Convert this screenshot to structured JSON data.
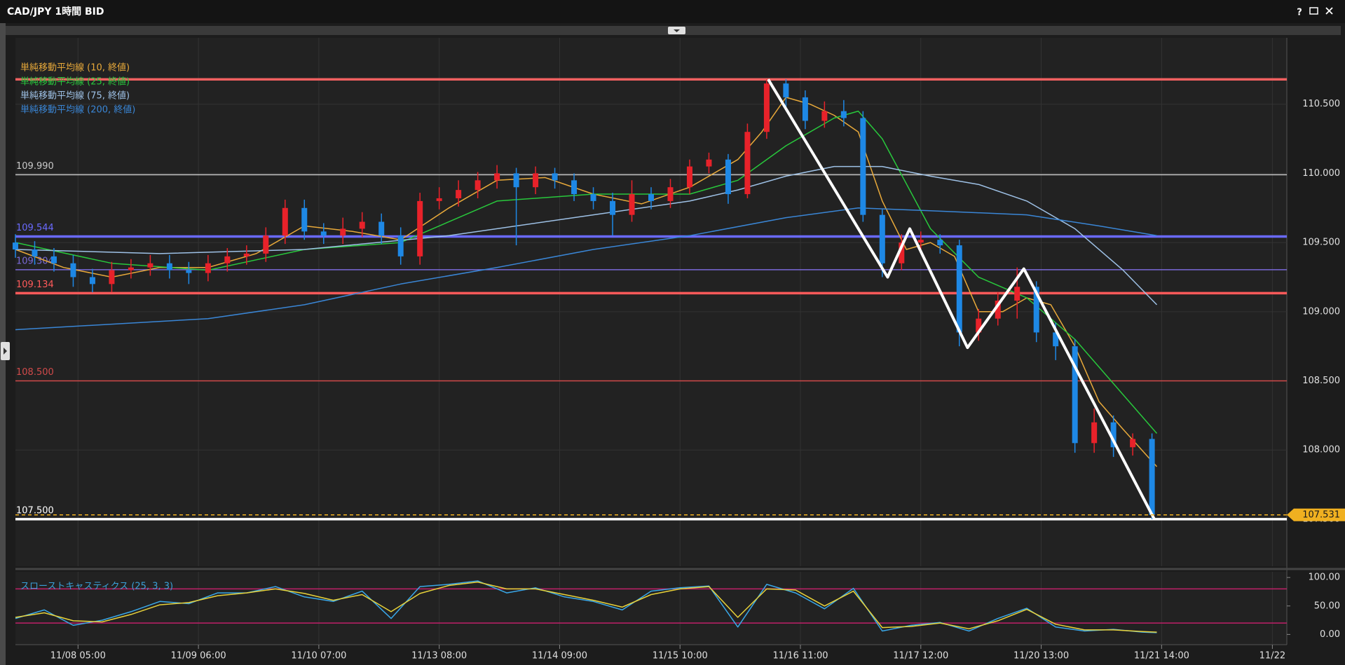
{
  "window": {
    "title": "CAD/JPY 1時間 BID",
    "help": "?"
  },
  "chart_data": [
    {
      "type": "candlestick",
      "up_color": "#e8222a",
      "down_color": "#1e88e5",
      "x": [
        0,
        4,
        8,
        12,
        16,
        20,
        24,
        28,
        32,
        36,
        40,
        44,
        48,
        52,
        56,
        60,
        64,
        68,
        72,
        76,
        80,
        84,
        88,
        92,
        96,
        100,
        104,
        108,
        112,
        116,
        120,
        124,
        128,
        132,
        136,
        140,
        144,
        148,
        152,
        156,
        160,
        164,
        168,
        172,
        176,
        180,
        184,
        188,
        192,
        196,
        200,
        204,
        208,
        212,
        216,
        220,
        224,
        228,
        232,
        236
      ],
      "open": [
        109.5,
        109.45,
        109.4,
        109.35,
        109.25,
        109.2,
        109.3,
        109.32,
        109.35,
        109.3,
        109.28,
        109.35,
        109.4,
        109.42,
        109.55,
        109.75,
        109.58,
        109.55,
        109.6,
        109.65,
        109.55,
        109.4,
        109.8,
        109.82,
        109.88,
        109.95,
        110.0,
        109.9,
        110.0,
        109.95,
        109.85,
        109.8,
        109.7,
        109.85,
        109.8,
        109.9,
        110.05,
        110.1,
        109.85,
        110.3,
        110.65,
        110.55,
        110.38,
        110.45,
        110.4,
        109.7,
        109.35,
        109.5,
        109.52,
        109.48,
        108.85,
        108.95,
        109.08,
        109.18,
        108.85,
        108.75,
        108.05,
        108.2,
        108.02,
        108.08
      ],
      "high": [
        109.56,
        109.51,
        109.46,
        109.41,
        109.31,
        109.36,
        109.38,
        109.41,
        109.41,
        109.36,
        109.41,
        109.46,
        109.48,
        109.61,
        109.81,
        109.81,
        109.64,
        109.68,
        109.72,
        109.71,
        109.61,
        109.86,
        109.9,
        109.95,
        110.01,
        110.06,
        110.04,
        110.05,
        110.04,
        110.0,
        109.9,
        109.86,
        109.95,
        109.9,
        109.96,
        110.1,
        110.15,
        110.14,
        110.36,
        110.68,
        110.68,
        110.6,
        110.52,
        110.53,
        110.45,
        109.74,
        109.56,
        109.58,
        109.56,
        109.52,
        109.02,
        109.14,
        109.32,
        109.22,
        108.92,
        108.8,
        108.3,
        108.25,
        108.12,
        108.12
      ],
      "low": [
        109.39,
        109.34,
        109.29,
        109.18,
        109.14,
        109.14,
        109.24,
        109.26,
        109.24,
        109.2,
        109.22,
        109.29,
        109.34,
        109.36,
        109.49,
        109.52,
        109.49,
        109.49,
        109.54,
        109.49,
        109.34,
        109.34,
        109.74,
        109.76,
        109.82,
        109.89,
        109.48,
        109.85,
        109.89,
        109.8,
        109.74,
        109.55,
        109.65,
        109.74,
        109.75,
        109.85,
        110.0,
        109.78,
        109.82,
        110.25,
        110.48,
        110.32,
        110.33,
        110.34,
        109.65,
        109.25,
        109.3,
        109.45,
        109.42,
        108.75,
        108.79,
        108.9,
        108.95,
        108.78,
        108.65,
        107.98,
        107.98,
        107.95,
        107.96,
        107.5
      ],
      "close": [
        109.45,
        109.4,
        109.35,
        109.25,
        109.2,
        109.3,
        109.32,
        109.35,
        109.3,
        109.28,
        109.35,
        109.4,
        109.42,
        109.55,
        109.75,
        109.58,
        109.55,
        109.6,
        109.65,
        109.55,
        109.4,
        109.8,
        109.82,
        109.88,
        109.95,
        110.0,
        109.9,
        110.0,
        109.95,
        109.85,
        109.8,
        109.7,
        109.85,
        109.8,
        109.9,
        110.05,
        110.1,
        109.85,
        110.3,
        110.65,
        110.55,
        110.38,
        110.45,
        110.4,
        109.7,
        109.35,
        109.5,
        109.52,
        109.48,
        108.85,
        108.95,
        109.08,
        109.18,
        108.85,
        108.75,
        108.05,
        108.2,
        108.02,
        108.08,
        107.53
      ],
      "xlim": [
        0,
        264
      ],
      "ylim": [
        107.16,
        110.98
      ],
      "yticks": [
        {
          "value": 107.5,
          "label": "107.500"
        },
        {
          "value": 108,
          "label": "108.000"
        },
        {
          "value": 108.5,
          "label": "108.500"
        },
        {
          "value": 109,
          "label": "109.000"
        },
        {
          "value": 109.5,
          "label": "109.500"
        },
        {
          "value": 110,
          "label": "110.000"
        },
        {
          "value": 110.5,
          "label": "110.500"
        }
      ],
      "grid": true,
      "series": [
        {
          "name": "単純移動平均線 (10, 終値)",
          "color": "#e8a93a",
          "x": [
            0,
            10,
            20,
            30,
            40,
            50,
            60,
            70,
            80,
            90,
            100,
            110,
            120,
            130,
            140,
            150,
            155,
            160,
            165,
            170,
            175,
            180,
            185,
            190,
            195,
            200,
            205,
            210,
            215,
            220,
            225,
            230,
            237
          ],
          "values": [
            109.45,
            109.32,
            109.25,
            109.32,
            109.32,
            109.42,
            109.62,
            109.58,
            109.52,
            109.75,
            109.95,
            109.97,
            109.85,
            109.78,
            109.9,
            110.1,
            110.3,
            110.55,
            110.5,
            110.42,
            110.3,
            109.8,
            109.45,
            109.5,
            109.4,
            109.0,
            109.0,
            109.1,
            109.05,
            108.75,
            108.35,
            108.15,
            107.88
          ]
        },
        {
          "name": "単純移動平均線 (25, 終値)",
          "color": "#28c83c",
          "x": [
            0,
            20,
            40,
            60,
            80,
            100,
            120,
            140,
            150,
            160,
            170,
            175,
            180,
            190,
            200,
            210,
            220,
            230,
            237
          ],
          "values": [
            109.5,
            109.35,
            109.3,
            109.45,
            109.5,
            109.8,
            109.85,
            109.85,
            109.95,
            110.2,
            110.4,
            110.45,
            110.25,
            109.6,
            109.25,
            109.1,
            108.8,
            108.4,
            108.12
          ]
        },
        {
          "name": "単純移動平均線 (75, 終値)",
          "color": "#9ec1e6",
          "x": [
            0,
            30,
            60,
            90,
            120,
            140,
            150,
            160,
            170,
            180,
            190,
            200,
            210,
            220,
            230,
            237
          ],
          "values": [
            109.45,
            109.42,
            109.45,
            109.55,
            109.7,
            109.8,
            109.88,
            109.98,
            110.05,
            110.05,
            109.98,
            109.92,
            109.8,
            109.6,
            109.3,
            109.05
          ]
        },
        {
          "name": "単純移動平均線 (200, 終値)",
          "color": "#3a86d6",
          "x": [
            0,
            40,
            60,
            80,
            100,
            120,
            140,
            160,
            175,
            190,
            210,
            225,
            237
          ],
          "values": [
            108.87,
            108.95,
            109.05,
            109.2,
            109.32,
            109.45,
            109.55,
            109.68,
            109.75,
            109.73,
            109.7,
            109.62,
            109.55
          ]
        }
      ],
      "levels": [
        {
          "value": 110.68,
          "color": "#f06060",
          "style": "thick"
        },
        {
          "value": 109.99,
          "label": "109.990",
          "color": "#c8c8c8",
          "style": "thin"
        },
        {
          "value": 109.544,
          "label": "109.544",
          "color": "#6a6aff",
          "style": "thick"
        },
        {
          "value": 109.304,
          "label": "109.304",
          "color": "#7a6ad8",
          "style": "thin"
        },
        {
          "value": 109.134,
          "label": "109.134",
          "color": "#ff5a5a",
          "style": "thick"
        },
        {
          "value": 108.5,
          "label": "108.500",
          "color": "#d04a4a",
          "style": "thin"
        },
        {
          "value": 107.5,
          "label": "107.500",
          "color": "#ffffff",
          "style": "thick"
        }
      ],
      "current_price": {
        "value": 107.531,
        "label": "107.531",
        "color": "#f0b020"
      },
      "annotation": {
        "color": "#ffffff",
        "x": [
          156.3,
          181.1,
          185.7,
          197.7,
          209.4,
          236.5
        ],
        "values": [
          110.68,
          109.25,
          109.6,
          108.74,
          109.31,
          107.5
        ]
      }
    },
    {
      "type": "line",
      "title": "スローストキャスティクス (25, 3, 3)",
      "xlim": [
        0,
        264
      ],
      "xticks": [
        {
          "value": 13,
          "label": "11/08 05:00"
        },
        {
          "value": 38,
          "label": "11/09 06:00"
        },
        {
          "value": 63,
          "label": "11/10 07:00"
        },
        {
          "value": 88,
          "label": "11/13 08:00"
        },
        {
          "value": 113,
          "label": "11/14 09:00"
        },
        {
          "value": 138,
          "label": "11/15 10:00"
        },
        {
          "value": 163,
          "label": "11/16 11:00"
        },
        {
          "value": 188,
          "label": "11/17 12:00"
        },
        {
          "value": 213,
          "label": "11/20 13:00"
        },
        {
          "value": 238,
          "label": "11/21 14:00"
        },
        {
          "value": 261,
          "label": "11/22"
        }
      ],
      "ylim": [
        -18,
        110
      ],
      "yticks": [
        {
          "value": 0,
          "label": "0.00"
        },
        {
          "value": 50,
          "label": "50.00"
        },
        {
          "value": 100,
          "label": "100.00"
        }
      ],
      "levels": [
        20,
        80
      ],
      "level_color": "#c0206a",
      "series": [
        {
          "color": "#3aa8e8",
          "x": [
            0,
            6,
            12,
            18,
            24,
            30,
            36,
            42,
            48,
            54,
            60,
            66,
            72,
            78,
            84,
            90,
            96,
            102,
            108,
            114,
            120,
            126,
            132,
            138,
            144,
            150,
            156,
            162,
            168,
            174,
            180,
            186,
            192,
            198,
            204,
            210,
            216,
            222,
            228,
            234,
            237
          ],
          "values": [
            28,
            43,
            16,
            25,
            40,
            58,
            54,
            73,
            73,
            84,
            66,
            58,
            76,
            28,
            84,
            88,
            94,
            73,
            82,
            66,
            58,
            43,
            76,
            82,
            85,
            13,
            88,
            73,
            45,
            81,
            6,
            16,
            21,
            6,
            28,
            46,
            13,
            6,
            9,
            4,
            3
          ]
        },
        {
          "color": "#e8d23a",
          "x": [
            0,
            6,
            12,
            18,
            24,
            30,
            36,
            42,
            48,
            54,
            60,
            66,
            72,
            78,
            84,
            90,
            96,
            102,
            108,
            114,
            120,
            126,
            132,
            138,
            144,
            150,
            156,
            162,
            168,
            174,
            180,
            186,
            192,
            198,
            204,
            210,
            216,
            222,
            228,
            234,
            237
          ],
          "values": [
            30,
            38,
            24,
            22,
            35,
            52,
            56,
            68,
            73,
            80,
            72,
            60,
            70,
            40,
            72,
            86,
            92,
            80,
            80,
            70,
            60,
            48,
            70,
            80,
            84,
            30,
            80,
            78,
            50,
            76,
            12,
            14,
            20,
            10,
            24,
            44,
            18,
            8,
            8,
            5,
            4
          ]
        }
      ]
    }
  ]
}
